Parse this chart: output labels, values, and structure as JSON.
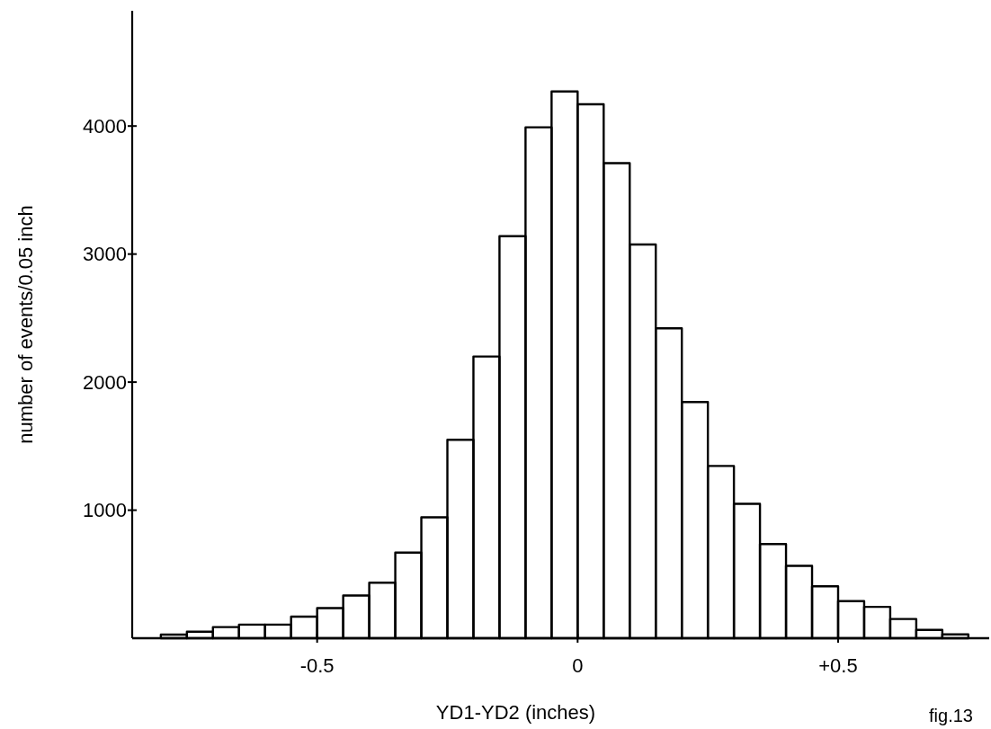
{
  "chart_data": {
    "type": "histogram",
    "xlabel": "YD1-YD2 (inches)",
    "ylabel": "number of events/0.05 inch",
    "bins": [
      -0.8,
      -0.75,
      -0.7,
      -0.65,
      -0.6,
      -0.55,
      -0.5,
      -0.45,
      -0.4,
      -0.35,
      -0.3,
      -0.25,
      -0.2,
      -0.15,
      -0.1,
      -0.05,
      0,
      0.05,
      0.1,
      0.15,
      0.2,
      0.25,
      0.3,
      0.35,
      0.4,
      0.45,
      0.5,
      0.55,
      0.6,
      0.65,
      0.7,
      0.75
    ],
    "values": [
      28,
      51,
      87,
      106,
      106,
      169,
      235,
      333,
      434,
      669,
      944,
      1550,
      2200,
      3140,
      3990,
      4270,
      4170,
      3710,
      3075,
      2420,
      1845,
      1345,
      1050,
      735,
      565,
      405,
      290,
      245,
      150,
      65,
      30
    ],
    "color": "#000000",
    "xlim": [
      -0.855,
      0.79
    ],
    "xticks": [
      -0.5,
      0,
      {
        "value": 0.5,
        "label": "+0.5"
      }
    ],
    "ylim": [
      0,
      4900
    ],
    "yticks": [
      1000,
      2000,
      3000,
      4000
    ],
    "grid": false,
    "annotations": [
      "fig.13"
    ]
  }
}
